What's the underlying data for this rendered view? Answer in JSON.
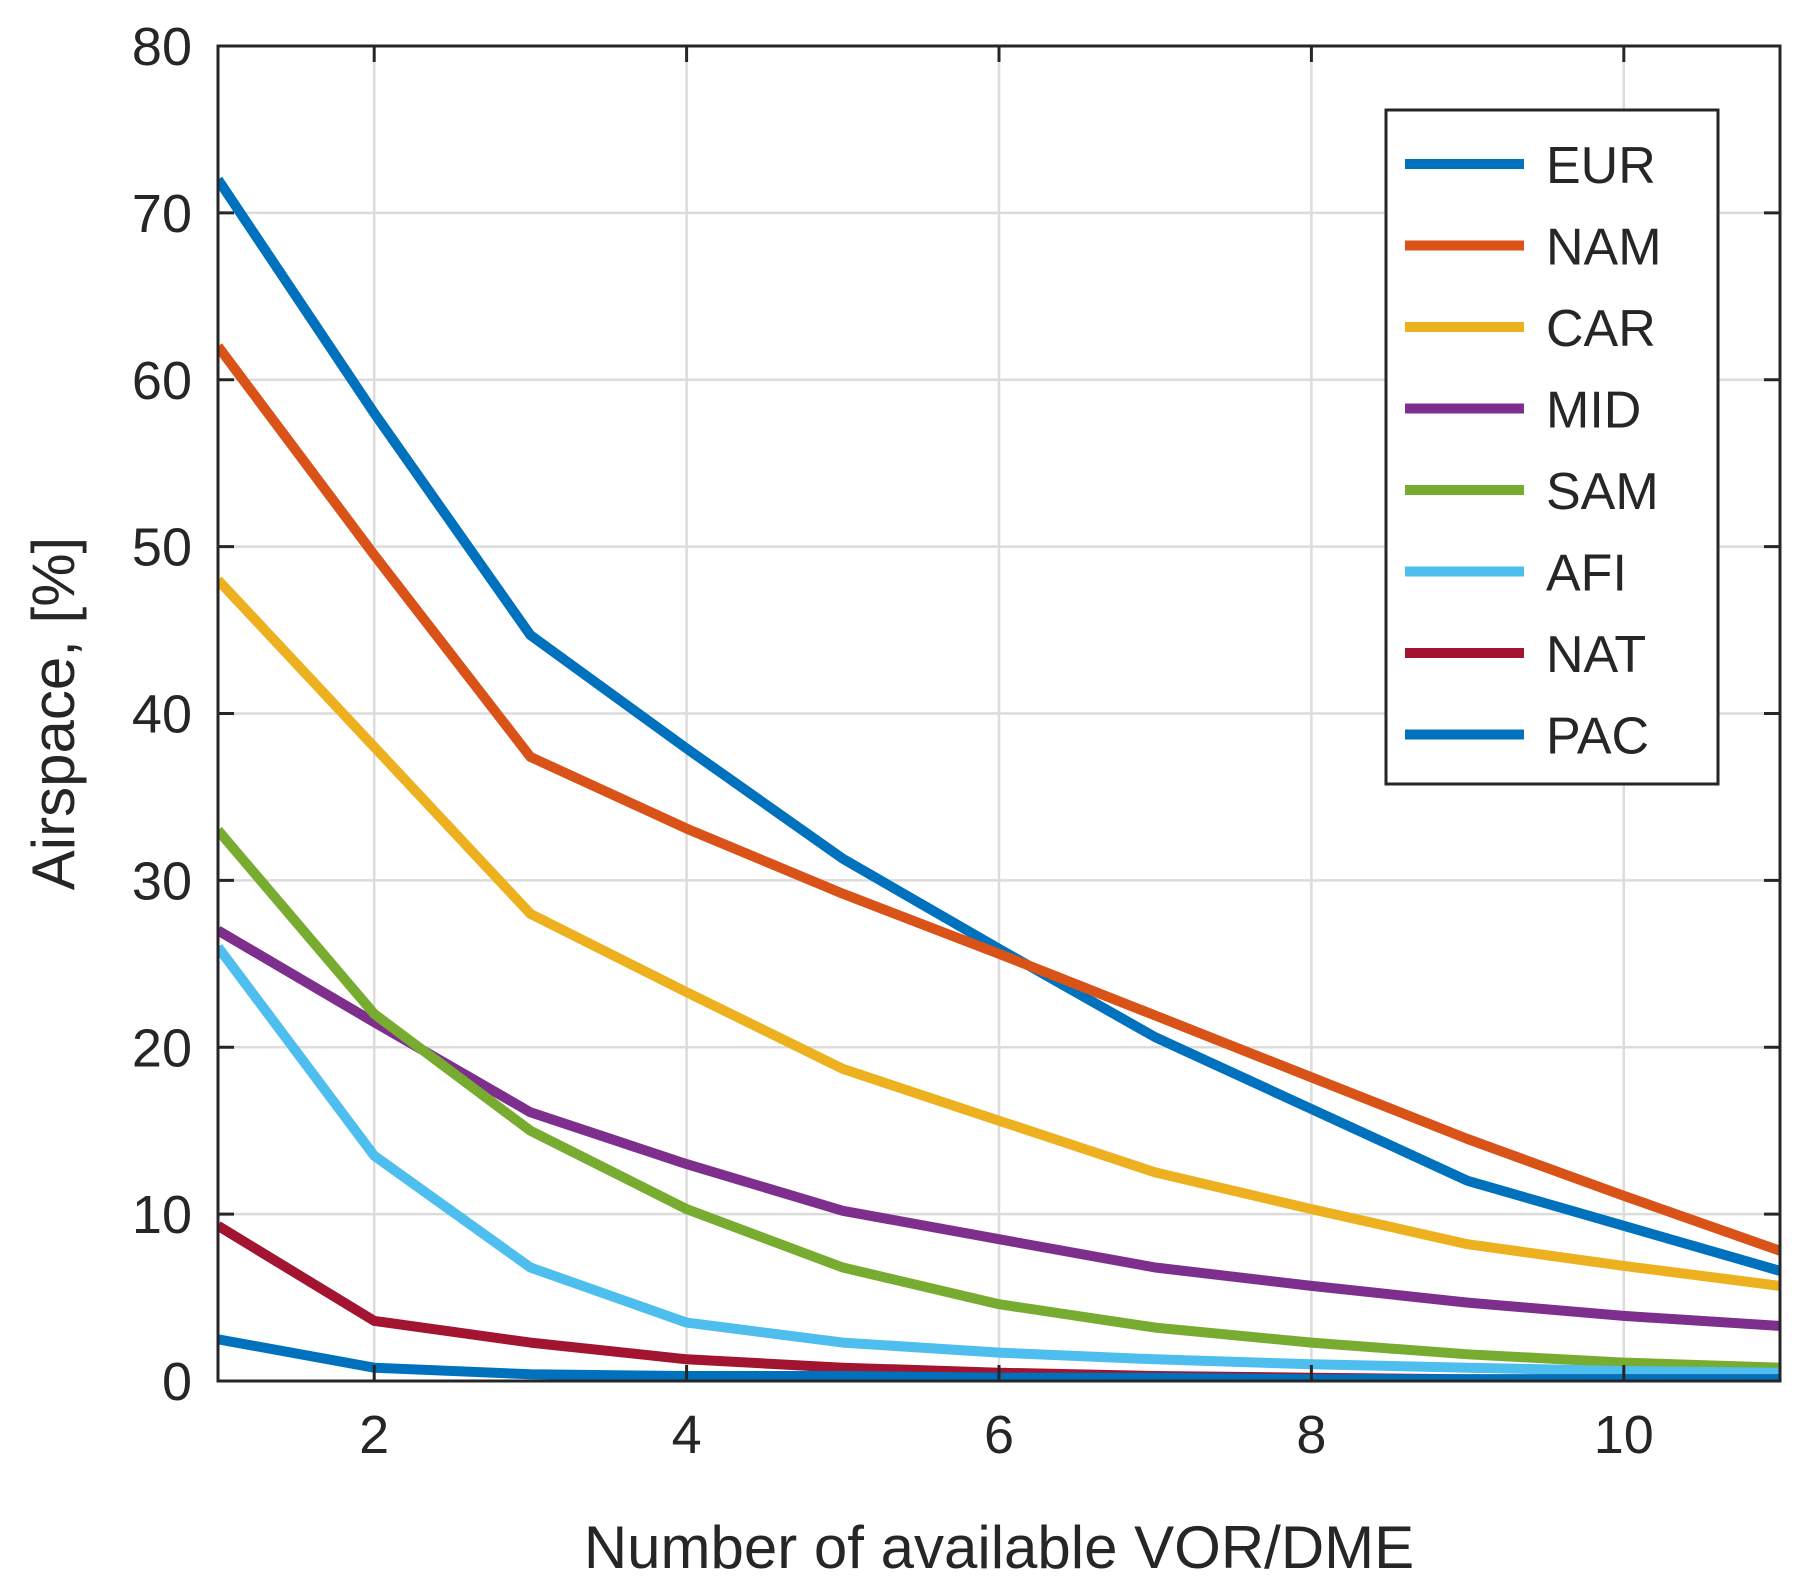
{
  "chart_data": {
    "type": "line",
    "title": "",
    "xlabel": "Number of available VOR/DME",
    "ylabel": "Airspace, [%]",
    "xlim": [
      1,
      11
    ],
    "ylim": [
      0,
      80
    ],
    "grid": true,
    "legend_position": "top-right",
    "x": [
      1,
      2,
      3,
      4,
      5,
      6,
      7,
      8,
      9,
      10,
      11
    ],
    "xticks": [
      2,
      4,
      6,
      8,
      10
    ],
    "yticks": [
      0,
      10,
      20,
      30,
      40,
      50,
      60,
      70,
      80
    ],
    "xtick_labels": [
      "2",
      "4",
      "6",
      "8",
      "10"
    ],
    "ytick_labels": [
      "0",
      "10",
      "20",
      "30",
      "40",
      "50",
      "60",
      "70",
      "80"
    ],
    "series": [
      {
        "name": "EUR",
        "color": "#0072BD",
        "values": [
          72.0,
          58.0,
          44.7,
          37.9,
          31.3,
          25.9,
          20.6,
          16.3,
          12.0,
          9.3,
          6.6
        ]
      },
      {
        "name": "NAM",
        "color": "#D95319",
        "values": [
          62.0,
          49.5,
          37.4,
          33.1,
          29.2,
          25.6,
          21.9,
          18.2,
          14.5,
          11.1,
          7.8
        ]
      },
      {
        "name": "CAR",
        "color": "#EDB120",
        "values": [
          48.0,
          38.0,
          28.0,
          23.3,
          18.7,
          15.6,
          12.5,
          10.3,
          8.2,
          6.9,
          5.7
        ]
      },
      {
        "name": "MID",
        "color": "#7E2F8E",
        "values": [
          27.0,
          21.5,
          16.1,
          13.0,
          10.2,
          8.5,
          6.8,
          5.7,
          4.7,
          3.9,
          3.3
        ]
      },
      {
        "name": "SAM",
        "color": "#77AC30",
        "values": [
          33.0,
          22.0,
          15.0,
          10.3,
          6.8,
          4.6,
          3.2,
          2.3,
          1.6,
          1.1,
          0.8
        ]
      },
      {
        "name": "AFI",
        "color": "#4DBEEE",
        "values": [
          26.0,
          13.5,
          6.8,
          3.5,
          2.3,
          1.7,
          1.3,
          1.0,
          0.8,
          0.6,
          0.5
        ]
      },
      {
        "name": "NAT",
        "color": "#A2142F",
        "values": [
          9.3,
          3.6,
          2.3,
          1.3,
          0.8,
          0.5,
          0.3,
          0.2,
          0.1,
          0.1,
          0.1
        ]
      },
      {
        "name": "PAC",
        "color": "#0072BD",
        "values": [
          2.5,
          0.8,
          0.4,
          0.3,
          0.3,
          0.2,
          0.2,
          0.1,
          0.1,
          0.1,
          0.1
        ]
      }
    ]
  }
}
